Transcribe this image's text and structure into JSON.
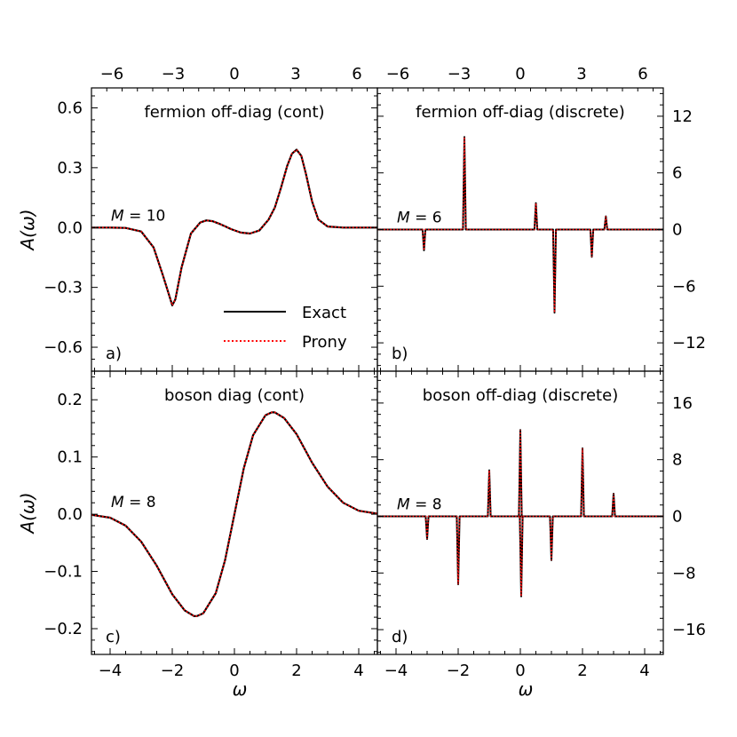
{
  "figure": {
    "legend": {
      "entries": [
        {
          "label": "Exact",
          "color": "#000000",
          "style": "solid"
        },
        {
          "label": "Prony",
          "color": "#ff0000",
          "style": "dotted"
        }
      ],
      "placement": "panel a, lower center"
    }
  },
  "chart_data": [
    {
      "id": "a",
      "type": "line",
      "title": "fermion off-diag (cont)",
      "panel_label": "a)",
      "annotation": "M = 10",
      "ylabel": "A(ω)",
      "xlim": [
        -4.6,
        4.6
      ],
      "top_xlim": [
        -7,
        7
      ],
      "top_xticks": [
        "−6",
        "−3",
        "0",
        "3",
        "6"
      ],
      "top_xtick_values": [
        -6,
        -3,
        0,
        3,
        6
      ],
      "ylim": [
        -0.72,
        0.7
      ],
      "yticks": [
        "0.6",
        "0.3",
        "0.0",
        "−0.3",
        "−0.6"
      ],
      "ytick_values": [
        0.6,
        0.3,
        0,
        -0.3,
        -0.6
      ],
      "series": [
        {
          "name": "Exact",
          "x": [
            -4.6,
            -4,
            -3.5,
            -3,
            -2.6,
            -2.3,
            -2.1,
            -2,
            -1.9,
            -1.7,
            -1.4,
            -1.1,
            -0.9,
            -0.7,
            -0.5,
            -0.3,
            -0.1,
            0.2,
            0.5,
            0.8,
            1.1,
            1.3,
            1.5,
            1.7,
            1.85,
            2,
            2.15,
            2.3,
            2.5,
            2.7,
            3,
            3.5,
            4,
            4.6
          ],
          "y": [
            0,
            0,
            -0.002,
            -0.02,
            -0.1,
            -0.24,
            -0.34,
            -0.39,
            -0.36,
            -0.2,
            -0.03,
            0.025,
            0.036,
            0.032,
            0.02,
            0.006,
            -0.008,
            -0.025,
            -0.03,
            -0.015,
            0.04,
            0.1,
            0.2,
            0.31,
            0.37,
            0.39,
            0.36,
            0.27,
            0.13,
            0.04,
            0.005,
            0,
            0,
            0
          ]
        }
      ]
    },
    {
      "id": "b",
      "type": "line",
      "title": "fermion off-diag (discrete)",
      "panel_label": "b)",
      "annotation": "M = 6",
      "xlim": [
        -4.6,
        4.6
      ],
      "top_xlim": [
        -7,
        7
      ],
      "top_xticks": [
        "−6",
        "−3",
        "0",
        "3",
        "6"
      ],
      "top_xtick_values": [
        -6,
        -3,
        0,
        3,
        6
      ],
      "ylim": [
        -15,
        15
      ],
      "yticks": [
        "12",
        "6",
        "0",
        "−6",
        "−12"
      ],
      "ytick_values": [
        12,
        6,
        0,
        -6,
        -12
      ],
      "spikes": [
        {
          "x": -3.1,
          "y": -2.2
        },
        {
          "x": -1.8,
          "y": 9.8
        },
        {
          "x": 0.5,
          "y": 2.8
        },
        {
          "x": 1.1,
          "y": -8.8
        },
        {
          "x": 2.3,
          "y": -2.9
        },
        {
          "x": 2.75,
          "y": 1.4
        }
      ]
    },
    {
      "id": "c",
      "type": "line",
      "title": "boson diag (cont)",
      "panel_label": "c)",
      "annotation": "M = 8",
      "ylabel": "A(ω)",
      "xlabel": "ω",
      "xlim": [
        -4.6,
        4.6
      ],
      "xticks": [
        "−4",
        "−2",
        "0",
        "2",
        "4"
      ],
      "xtick_values": [
        -4,
        -2,
        0,
        2,
        4
      ],
      "ylim": [
        -0.245,
        0.25
      ],
      "yticks": [
        "0.2",
        "0.1",
        "0.0",
        "−0.1",
        "−0.2"
      ],
      "ytick_values": [
        0.2,
        0.1,
        0,
        -0.1,
        -0.2
      ],
      "series": [
        {
          "name": "Exact",
          "x": [
            -4.6,
            -4,
            -3.5,
            -3,
            -2.5,
            -2,
            -1.6,
            -1.3,
            -1.2,
            -1,
            -0.6,
            -0.3,
            0,
            0.3,
            0.6,
            1,
            1.2,
            1.3,
            1.6,
            2,
            2.5,
            3,
            3.5,
            4,
            4.6
          ],
          "y": [
            -0.001,
            -0.006,
            -0.02,
            -0.048,
            -0.09,
            -0.14,
            -0.168,
            -0.178,
            -0.178,
            -0.173,
            -0.138,
            -0.08,
            0,
            0.08,
            0.138,
            0.173,
            0.178,
            0.178,
            0.168,
            0.14,
            0.09,
            0.048,
            0.02,
            0.006,
            0.001
          ]
        }
      ]
    },
    {
      "id": "d",
      "type": "line",
      "title": "boson off-diag (discrete)",
      "panel_label": "d)",
      "annotation": "M = 8",
      "xlabel": "ω",
      "xlim": [
        -4.6,
        4.6
      ],
      "xticks": [
        "−4",
        "−2",
        "0",
        "2",
        "4"
      ],
      "xtick_values": [
        -4,
        -2,
        0,
        2,
        4
      ],
      "ylim": [
        -19.5,
        20.5
      ],
      "yticks": [
        "16",
        "8",
        "0",
        "−8",
        "−16"
      ],
      "ytick_values": [
        16,
        8,
        0,
        -8,
        -16
      ],
      "spikes": [
        {
          "x": -3.0,
          "y": -3.2
        },
        {
          "x": -2.0,
          "y": -9.6
        },
        {
          "x": -1.0,
          "y": 6.5
        },
        {
          "x": 0.0,
          "y": 12.2
        },
        {
          "x": 0.03,
          "y": -11.3
        },
        {
          "x": 1.0,
          "y": -6.2
        },
        {
          "x": 2.0,
          "y": 9.6
        },
        {
          "x": 3.0,
          "y": 3.2
        }
      ]
    }
  ]
}
